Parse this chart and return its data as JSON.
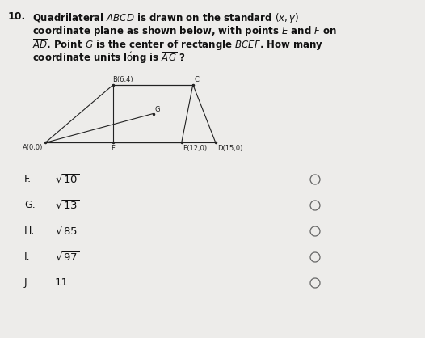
{
  "question_number": "10.",
  "points": {
    "A": [
      0,
      0
    ],
    "B": [
      6,
      4
    ],
    "C": [
      13,
      4
    ],
    "D": [
      15,
      0
    ],
    "E": [
      12,
      0
    ],
    "F": [
      6,
      0
    ],
    "G": [
      9.5,
      2
    ]
  },
  "choices": [
    [
      "F.",
      "√10"
    ],
    [
      "G.",
      "√13"
    ],
    [
      "H.",
      "√85"
    ],
    [
      "I.",
      "√97"
    ],
    [
      "J.",
      "11"
    ]
  ],
  "bg_color": "#edecea",
  "text_color": "#111111",
  "line_color": "#222222",
  "fig_width": 5.26,
  "fig_height": 4.18,
  "dpi": 100,
  "diagram_xlim": [
    -1,
    17
  ],
  "diagram_ylim": [
    -1.2,
    5.2
  ]
}
